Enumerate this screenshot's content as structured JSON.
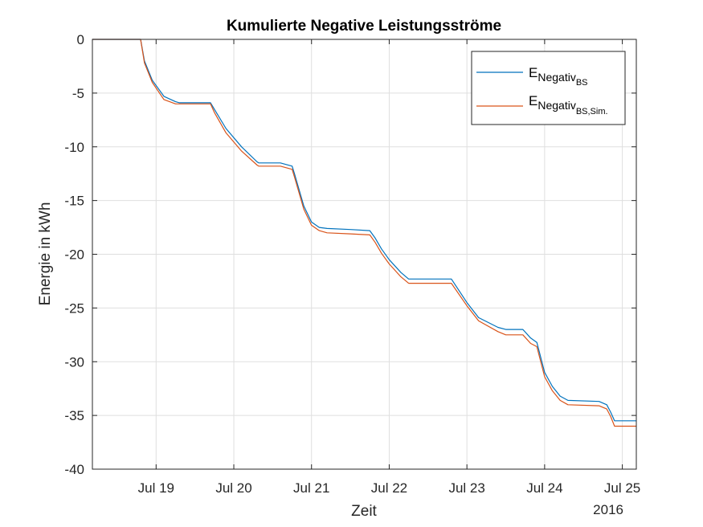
{
  "chart_data": {
    "type": "line",
    "title": "Kumulierte Negative Leistungsströme",
    "xlabel": "Zeit",
    "ylabel": "Energie in kWh",
    "x_secondary_label": "2016",
    "x_tick_labels": [
      "Jul 19",
      "Jul 20",
      "Jul 21",
      "Jul 22",
      "Jul 23",
      "Jul 24",
      "Jul 25"
    ],
    "x_tick_values": [
      1,
      2,
      3,
      4,
      5,
      6,
      7
    ],
    "xlim": [
      0.18,
      7.18
    ],
    "ylim": [
      -40,
      0
    ],
    "y_ticks": [
      0,
      -5,
      -10,
      -15,
      -20,
      -25,
      -30,
      -35,
      -40
    ],
    "y_tick_labels": [
      "0",
      "-5",
      "-10",
      "-15",
      "-20",
      "-25",
      "-30",
      "-35",
      "-40"
    ],
    "grid": true,
    "legend_position": "top-right",
    "series": [
      {
        "legend_main": "E",
        "legend_sub": "Negativ",
        "legend_subsub": "BS",
        "color": "#0072BD",
        "x": [
          0.18,
          0.8,
          0.85,
          0.95,
          1.1,
          1.25,
          1.3,
          1.45,
          1.7,
          1.75,
          1.9,
          2.1,
          2.3,
          2.32,
          2.6,
          2.75,
          2.78,
          2.9,
          3.0,
          3.1,
          3.2,
          3.5,
          3.75,
          3.82,
          3.9,
          4.0,
          4.15,
          4.25,
          4.8,
          5.0,
          5.15,
          5.4,
          5.5,
          5.72,
          5.82,
          5.9,
          6.0,
          6.1,
          6.2,
          6.3,
          6.7,
          6.8,
          6.85,
          6.9,
          7.18
        ],
        "y": [
          0,
          0,
          -2.0,
          -3.8,
          -5.3,
          -5.8,
          -5.9,
          -5.9,
          -5.9,
          -6.5,
          -8.3,
          -10.0,
          -11.4,
          -11.5,
          -11.5,
          -11.8,
          -12.5,
          -15.5,
          -17.0,
          -17.5,
          -17.6,
          -17.7,
          -17.8,
          -18.5,
          -19.5,
          -20.5,
          -21.7,
          -22.3,
          -22.3,
          -24.5,
          -25.9,
          -26.8,
          -27.0,
          -27.0,
          -27.8,
          -28.2,
          -31.0,
          -32.3,
          -33.2,
          -33.6,
          -33.7,
          -34.0,
          -34.7,
          -35.5,
          -35.5
        ]
      },
      {
        "legend_main": "E",
        "legend_sub": "Negativ",
        "legend_subsub": "BS,Sim.",
        "color": "#D95319",
        "x": [
          0.18,
          0.8,
          0.85,
          0.95,
          1.1,
          1.25,
          1.3,
          1.45,
          1.7,
          1.75,
          1.9,
          2.1,
          2.3,
          2.32,
          2.6,
          2.75,
          2.78,
          2.9,
          3.0,
          3.1,
          3.2,
          3.5,
          3.75,
          3.82,
          3.9,
          4.0,
          4.15,
          4.25,
          4.8,
          5.0,
          5.15,
          5.4,
          5.5,
          5.72,
          5.82,
          5.9,
          6.0,
          6.1,
          6.2,
          6.3,
          6.7,
          6.8,
          6.85,
          6.9,
          7.18
        ],
        "y": [
          0,
          0,
          -2.2,
          -4.0,
          -5.6,
          -6.0,
          -6.0,
          -6.0,
          -6.0,
          -6.8,
          -8.7,
          -10.4,
          -11.7,
          -11.8,
          -11.8,
          -12.1,
          -12.8,
          -15.8,
          -17.3,
          -17.8,
          -18.0,
          -18.1,
          -18.2,
          -18.9,
          -19.9,
          -20.9,
          -22.1,
          -22.7,
          -22.7,
          -24.8,
          -26.2,
          -27.2,
          -27.5,
          -27.5,
          -28.3,
          -28.6,
          -31.4,
          -32.7,
          -33.6,
          -34.0,
          -34.1,
          -34.4,
          -35.1,
          -36.0,
          -36.0
        ]
      }
    ]
  }
}
